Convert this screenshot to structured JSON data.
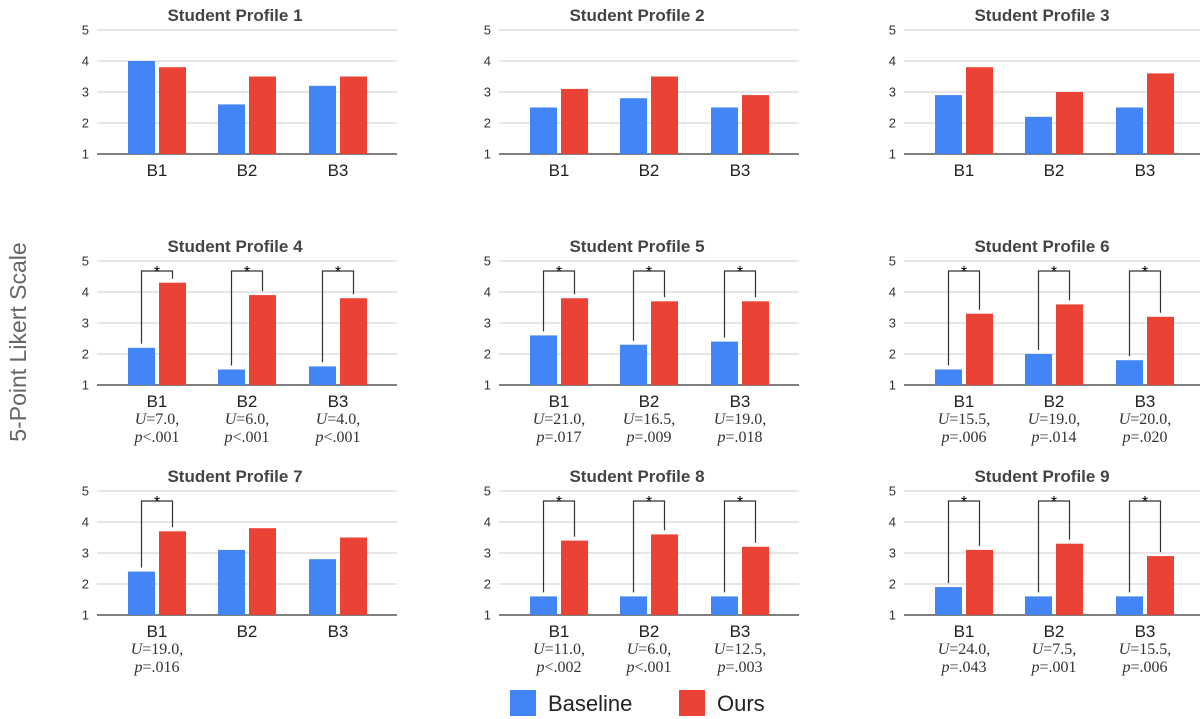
{
  "y_axis_label": "5-Point Likert Scale",
  "legend": [
    {
      "name": "Baseline",
      "color": "#4285f4"
    },
    {
      "name": "Ours",
      "color": "#ea4335"
    }
  ],
  "chart_data": [
    {
      "type": "bar",
      "title": "Student Profile 1",
      "categories": [
        "B1",
        "B2",
        "B3"
      ],
      "ylim": [
        1,
        5
      ],
      "yticks": [
        "1",
        "2",
        "3",
        "4",
        "5"
      ],
      "series": [
        {
          "name": "Baseline",
          "values": [
            4.0,
            2.6,
            3.2
          ]
        },
        {
          "name": "Ours",
          "values": [
            3.8,
            3.5,
            3.5
          ]
        }
      ],
      "significant": [
        false,
        false,
        false
      ],
      "stats": []
    },
    {
      "type": "bar",
      "title": "Student Profile 2",
      "categories": [
        "B1",
        "B2",
        "B3"
      ],
      "ylim": [
        1,
        5
      ],
      "yticks": [
        "1",
        "2",
        "3",
        "4",
        "5"
      ],
      "series": [
        {
          "name": "Baseline",
          "values": [
            2.5,
            2.8,
            2.5
          ]
        },
        {
          "name": "Ours",
          "values": [
            3.1,
            3.5,
            2.9
          ]
        }
      ],
      "significant": [
        false,
        false,
        false
      ],
      "stats": []
    },
    {
      "type": "bar",
      "title": "Student Profile 3",
      "categories": [
        "B1",
        "B2",
        "B3"
      ],
      "ylim": [
        1,
        5
      ],
      "yticks": [
        "1",
        "2",
        "3",
        "4",
        "5"
      ],
      "series": [
        {
          "name": "Baseline",
          "values": [
            2.9,
            2.2,
            2.5
          ]
        },
        {
          "name": "Ours",
          "values": [
            3.8,
            3.0,
            3.6
          ]
        }
      ],
      "significant": [
        false,
        false,
        false
      ],
      "stats": []
    },
    {
      "type": "bar",
      "title": "Student Profile 4",
      "categories": [
        "B1",
        "B2",
        "B3"
      ],
      "ylim": [
        1,
        5
      ],
      "yticks": [
        "1",
        "2",
        "3",
        "4",
        "5"
      ],
      "series": [
        {
          "name": "Baseline",
          "values": [
            2.2,
            1.5,
            1.6
          ]
        },
        {
          "name": "Ours",
          "values": [
            4.3,
            3.9,
            3.8
          ]
        }
      ],
      "significant": [
        true,
        true,
        true
      ],
      "stats": [
        {
          "u": "U=7.0,",
          "p": "p<.001"
        },
        {
          "u": "U=6.0,",
          "p": "p<.001"
        },
        {
          "u": "U=4.0,",
          "p": "p<.001"
        }
      ]
    },
    {
      "type": "bar",
      "title": "Student Profile 5",
      "categories": [
        "B1",
        "B2",
        "B3"
      ],
      "ylim": [
        1,
        5
      ],
      "yticks": [
        "1",
        "2",
        "3",
        "4",
        "5"
      ],
      "series": [
        {
          "name": "Baseline",
          "values": [
            2.6,
            2.3,
            2.4
          ]
        },
        {
          "name": "Ours",
          "values": [
            3.8,
            3.7,
            3.7
          ]
        }
      ],
      "significant": [
        true,
        true,
        true
      ],
      "stats": [
        {
          "u": "U=21.0,",
          "p": "p=.017"
        },
        {
          "u": "U=16.5,",
          "p": "p=.009"
        },
        {
          "u": "U=19.0,",
          "p": "p=.018"
        }
      ]
    },
    {
      "type": "bar",
      "title": "Student Profile 6",
      "categories": [
        "B1",
        "B2",
        "B3"
      ],
      "ylim": [
        1,
        5
      ],
      "yticks": [
        "1",
        "2",
        "3",
        "4",
        "5"
      ],
      "series": [
        {
          "name": "Baseline",
          "values": [
            1.5,
            2.0,
            1.8
          ]
        },
        {
          "name": "Ours",
          "values": [
            3.3,
            3.6,
            3.2
          ]
        }
      ],
      "significant": [
        true,
        true,
        true
      ],
      "stats": [
        {
          "u": "U=15.5,",
          "p": "p=.006"
        },
        {
          "u": "U=19.0,",
          "p": "p=.014"
        },
        {
          "u": "U=20.0,",
          "p": "p=.020"
        }
      ]
    },
    {
      "type": "bar",
      "title": "Student Profile 7",
      "categories": [
        "B1",
        "B2",
        "B3"
      ],
      "ylim": [
        1,
        5
      ],
      "yticks": [
        "1",
        "2",
        "3",
        "4",
        "5"
      ],
      "series": [
        {
          "name": "Baseline",
          "values": [
            2.4,
            3.1,
            2.8
          ]
        },
        {
          "name": "Ours",
          "values": [
            3.7,
            3.8,
            3.5
          ]
        }
      ],
      "significant": [
        true,
        false,
        false
      ],
      "stats": [
        {
          "u": "U=19.0,",
          "p": "p=.016"
        },
        null,
        null
      ]
    },
    {
      "type": "bar",
      "title": "Student Profile 8",
      "categories": [
        "B1",
        "B2",
        "B3"
      ],
      "ylim": [
        1,
        5
      ],
      "yticks": [
        "1",
        "2",
        "3",
        "4",
        "5"
      ],
      "series": [
        {
          "name": "Baseline",
          "values": [
            1.6,
            1.6,
            1.6
          ]
        },
        {
          "name": "Ours",
          "values": [
            3.4,
            3.6,
            3.2
          ]
        }
      ],
      "significant": [
        true,
        true,
        true
      ],
      "stats": [
        {
          "u": "U=11.0,",
          "p": "p<.002"
        },
        {
          "u": "U=6.0,",
          "p": "p<.001"
        },
        {
          "u": "U=12.5,",
          "p": "p=.003"
        }
      ]
    },
    {
      "type": "bar",
      "title": "Student Profile 9",
      "categories": [
        "B1",
        "B2",
        "B3"
      ],
      "ylim": [
        1,
        5
      ],
      "yticks": [
        "1",
        "2",
        "3",
        "4",
        "5"
      ],
      "series": [
        {
          "name": "Baseline",
          "values": [
            1.9,
            1.6,
            1.6
          ]
        },
        {
          "name": "Ours",
          "values": [
            3.1,
            3.3,
            2.9
          ]
        }
      ],
      "significant": [
        true,
        true,
        true
      ],
      "stats": [
        {
          "u": "U=24.0,",
          "p": "p=.043"
        },
        {
          "u": "U=7.5,",
          "p": "p=.001"
        },
        {
          "u": "U=15.5,",
          "p": "p=.006"
        }
      ]
    }
  ]
}
